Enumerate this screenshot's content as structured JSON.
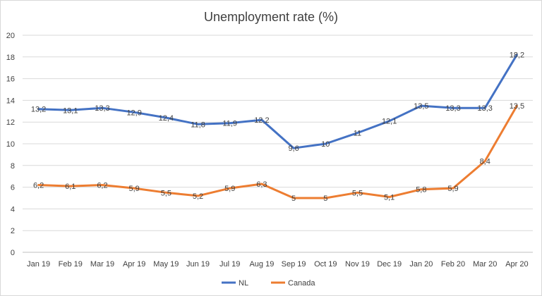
{
  "chart_data": {
    "type": "line",
    "title": "Unemployment rate (%)",
    "xlabel": "",
    "ylabel": "",
    "ylim": [
      0,
      20
    ],
    "yticks": [
      0,
      2,
      4,
      6,
      8,
      10,
      12,
      14,
      16,
      18,
      20
    ],
    "grid": true,
    "legend_position": "bottom",
    "categories": [
      "Jan 19",
      "Feb 19",
      "Mar 19",
      "Apr 19",
      "May 19",
      "Jun 19",
      "Jul 19",
      "Aug 19",
      "Sep 19",
      "Oct 19",
      "Nov 19",
      "Dec 19",
      "Jan 20",
      "Feb 20",
      "Mar 20",
      "Apr 20"
    ],
    "series": [
      {
        "name": "NL",
        "color": "#4472c4",
        "values": [
          13.2,
          13.1,
          13.3,
          12.9,
          12.4,
          11.8,
          11.9,
          12.2,
          9.6,
          10,
          11,
          12.1,
          13.5,
          13.3,
          13.3,
          18.2
        ],
        "labels": [
          "13,2",
          "13,1",
          "13,3",
          "12,9",
          "12,4",
          "11,8",
          "11,9",
          "12,2",
          "9,6",
          "10",
          "11",
          "12,1",
          "13,5",
          "13,3",
          "13,3",
          "18,2"
        ]
      },
      {
        "name": "Canada",
        "color": "#ed7d31",
        "values": [
          6.2,
          6.1,
          6.2,
          5.9,
          5.5,
          5.2,
          5.9,
          6.3,
          5,
          5,
          5.5,
          5.1,
          5.8,
          5.9,
          8.4,
          13.5
        ],
        "labels": [
          "6,2",
          "6,1",
          "6,2",
          "5,9",
          "5,5",
          "5,2",
          "5,9",
          "6,3",
          "5",
          "5",
          "5,5",
          "5,1",
          "5,8",
          "5,9",
          "8,4",
          "13,5"
        ]
      }
    ]
  }
}
